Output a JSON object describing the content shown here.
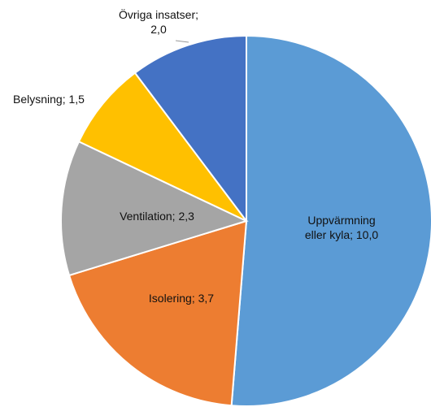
{
  "chart_data": {
    "type": "pie",
    "values": [
      10.0,
      3.7,
      2.3,
      1.5,
      2.0
    ],
    "value_labels": [
      "Uppvärmning\neller kyla; 10,0",
      "Isolering; 3,7",
      "Ventilation; 2,3",
      "Belysning; 1,5",
      "Övriga insatser;\n2,0"
    ],
    "colors": [
      "#5b9bd5",
      "#ed7d31",
      "#a5a5a5",
      "#ffc000",
      "#4472c4"
    ]
  }
}
